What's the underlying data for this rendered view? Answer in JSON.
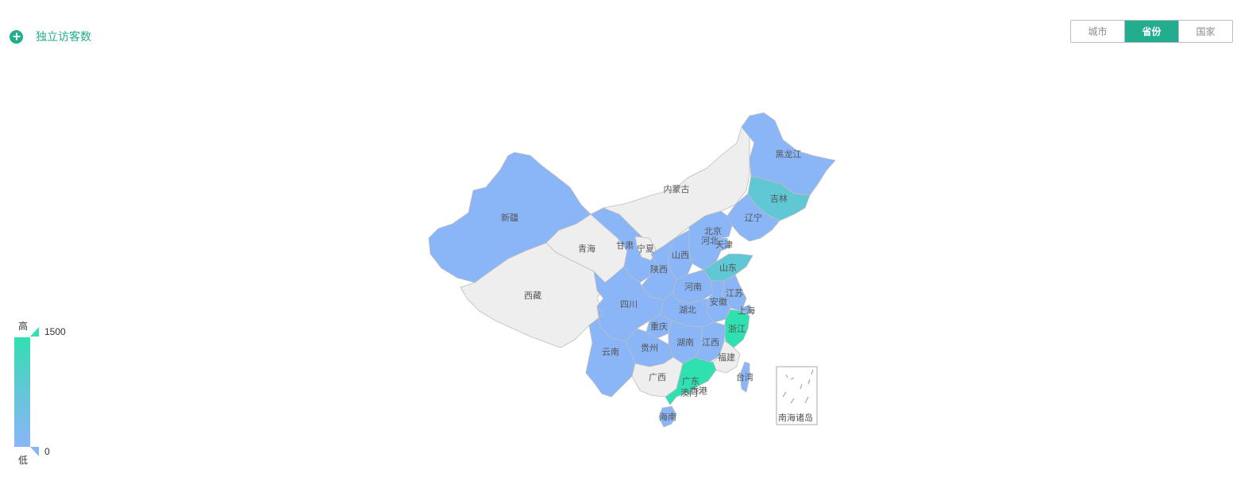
{
  "header": {
    "title": "独立访客数",
    "add_icon": "plus-circle-icon"
  },
  "view_switch": {
    "options": [
      "城市",
      "省份",
      "国家"
    ],
    "selected": "省份"
  },
  "legend": {
    "high_label": "高",
    "low_label": "低",
    "max": "1500",
    "min": "0"
  },
  "colors": {
    "accent": "#22ad8f",
    "level_high": "#2fe0b0",
    "level_mid": "#60c8d4",
    "level_low": "#8ab6f8",
    "no_data": "#eeeeee"
  },
  "map": {
    "level": "province",
    "inset_label": "南海诸岛",
    "regions": [
      {
        "name": "新疆",
        "level": "low"
      },
      {
        "name": "西藏",
        "level": "none"
      },
      {
        "name": "青海",
        "level": "none"
      },
      {
        "name": "甘肃",
        "level": "low"
      },
      {
        "name": "内蒙古",
        "level": "none"
      },
      {
        "name": "宁夏",
        "level": "none"
      },
      {
        "name": "黑龙江",
        "level": "low"
      },
      {
        "name": "吉林",
        "level": "mid"
      },
      {
        "name": "辽宁",
        "level": "low"
      },
      {
        "name": "北京",
        "level": "low"
      },
      {
        "name": "天津",
        "level": "low"
      },
      {
        "name": "河北",
        "level": "low"
      },
      {
        "name": "山西",
        "level": "low"
      },
      {
        "name": "山东",
        "level": "mid"
      },
      {
        "name": "陕西",
        "level": "low"
      },
      {
        "name": "河南",
        "level": "low"
      },
      {
        "name": "江苏",
        "level": "low"
      },
      {
        "name": "安徽",
        "level": "low"
      },
      {
        "name": "上海",
        "level": "low"
      },
      {
        "name": "浙江",
        "level": "high"
      },
      {
        "name": "湖北",
        "level": "low"
      },
      {
        "name": "四川",
        "level": "low"
      },
      {
        "name": "重庆",
        "level": "low"
      },
      {
        "name": "湖南",
        "level": "low"
      },
      {
        "name": "江西",
        "level": "low"
      },
      {
        "name": "贵州",
        "level": "low"
      },
      {
        "name": "云南",
        "level": "low"
      },
      {
        "name": "福建",
        "level": "none"
      },
      {
        "name": "台湾",
        "level": "low"
      },
      {
        "name": "广西",
        "level": "none"
      },
      {
        "name": "广东",
        "level": "high"
      },
      {
        "name": "香港",
        "level": "none"
      },
      {
        "name": "澳门",
        "level": "high"
      },
      {
        "name": "海南",
        "level": "low"
      }
    ]
  }
}
